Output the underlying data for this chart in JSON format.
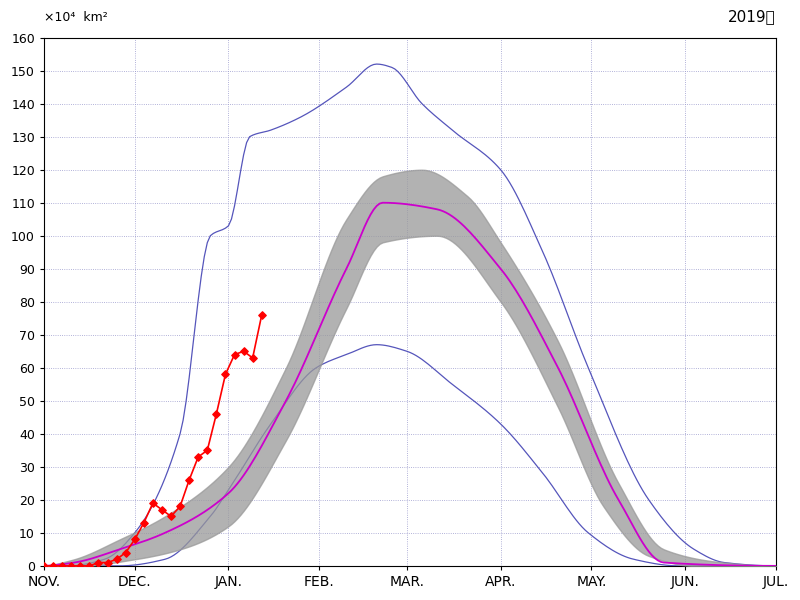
{
  "title": "2019年",
  "ylabel_line1": "×10⁴  km²",
  "ylim": [
    0,
    160
  ],
  "yticks": [
    0,
    10,
    20,
    30,
    40,
    50,
    60,
    70,
    80,
    90,
    100,
    110,
    120,
    130,
    140,
    150,
    160
  ],
  "month_labels": [
    "NOV.",
    "DEC.",
    "JAN.",
    "FEB.",
    "MAR.",
    "APR.",
    "MAY.",
    "JUN.",
    "JUL."
  ],
  "bg_color": "#ffffff",
  "grid_color": "#9999cc",
  "mean_color": "#cc00cc",
  "band_color": "#999999",
  "blue_color": "#5555bb",
  "obs_color": "#ff0000",
  "band_alpha": 0.75
}
